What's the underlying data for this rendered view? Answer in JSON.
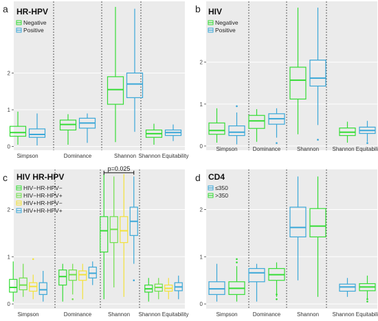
{
  "figure": {
    "panels": [
      {
        "letter": "a",
        "title": "HR-HPV"
      },
      {
        "letter": "b",
        "title": "HIV"
      },
      {
        "letter": "c",
        "title": "HIV HR-HPV"
      },
      {
        "letter": "d",
        "title": "CD4"
      }
    ]
  },
  "colors": {
    "green": "#35dc35",
    "blue": "#3aa7d8",
    "light_green": "#6ee04a",
    "yellow": "#f2e23a",
    "panel_bg": "#ebebeb",
    "divider": "#333333"
  },
  "chart_data": [
    {
      "panel": "a",
      "type": "box",
      "title": "HR-HPV",
      "categories": [
        "Simpson",
        "Dominance",
        "Shannon",
        "Shannon Equitability"
      ],
      "ylim": [
        -0.1,
        3.95
      ],
      "yticks": [
        0,
        1,
        2
      ],
      "legend": {
        "placement": "top-left",
        "entries": [
          "Negative",
          "Positive"
        ]
      },
      "series": [
        {
          "name": "Negative",
          "color": "green",
          "boxes": [
            {
              "min": 0.05,
              "q1": 0.28,
              "median": 0.38,
              "q3": 0.55,
              "max": 0.95,
              "outliers": []
            },
            {
              "min": 0.05,
              "q1": 0.45,
              "median": 0.6,
              "q3": 0.72,
              "max": 0.88,
              "outliers": []
            },
            {
              "min": 0.12,
              "q1": 1.15,
              "median": 1.55,
              "q3": 1.9,
              "max": 3.8,
              "outliers": []
            },
            {
              "min": 0.05,
              "q1": 0.25,
              "median": 0.35,
              "q3": 0.45,
              "max": 0.62,
              "outliers": []
            }
          ]
        },
        {
          "name": "Positive",
          "color": "blue",
          "boxes": [
            {
              "min": 0.03,
              "q1": 0.25,
              "median": 0.33,
              "q3": 0.48,
              "max": 0.9,
              "outliers": []
            },
            {
              "min": 0.1,
              "q1": 0.5,
              "median": 0.64,
              "q3": 0.77,
              "max": 0.9,
              "outliers": []
            },
            {
              "min": 0.4,
              "q1": 1.33,
              "median": 1.7,
              "q3": 2.0,
              "max": 3.75,
              "outliers": []
            },
            {
              "min": 0.15,
              "q1": 0.3,
              "median": 0.38,
              "q3": 0.45,
              "max": 0.6,
              "outliers": []
            }
          ]
        }
      ]
    },
    {
      "panel": "b",
      "type": "box",
      "title": "HIV",
      "categories": [
        "Simpson",
        "Dominance",
        "Shannon",
        "Shannon Equitability"
      ],
      "ylim": [
        -0.1,
        3.45
      ],
      "yticks": [
        0,
        1,
        2
      ],
      "legend": {
        "placement": "top-left",
        "entries": [
          "Negative",
          "Positive"
        ]
      },
      "series": [
        {
          "name": "Negative",
          "color": "green",
          "boxes": [
            {
              "min": 0.08,
              "q1": 0.28,
              "median": 0.37,
              "q3": 0.55,
              "max": 0.9,
              "outliers": []
            },
            {
              "min": 0.1,
              "q1": 0.42,
              "median": 0.6,
              "q3": 0.73,
              "max": 0.88,
              "outliers": []
            },
            {
              "min": 0.28,
              "q1": 1.12,
              "median": 1.57,
              "q3": 1.88,
              "max": 3.3,
              "outliers": []
            },
            {
              "min": 0.08,
              "q1": 0.25,
              "median": 0.33,
              "q3": 0.43,
              "max": 0.58,
              "outliers": []
            }
          ]
        },
        {
          "name": "Positive",
          "color": "blue",
          "boxes": [
            {
              "min": 0.04,
              "q1": 0.25,
              "median": 0.33,
              "q3": 0.48,
              "max": 0.8,
              "outliers": [
                0.95
              ]
            },
            {
              "min": 0.2,
              "q1": 0.52,
              "median": 0.65,
              "q3": 0.77,
              "max": 0.9,
              "outliers": [
                0.07
              ]
            },
            {
              "min": 0.5,
              "q1": 1.43,
              "median": 1.62,
              "q3": 2.05,
              "max": 3.3,
              "outliers": [
                0.15
              ]
            },
            {
              "min": 0.1,
              "q1": 0.3,
              "median": 0.37,
              "q3": 0.45,
              "max": 0.6,
              "outliers": [
                0.07
              ]
            }
          ]
        }
      ]
    },
    {
      "panel": "c",
      "type": "box",
      "title": "HIV HR-HPV",
      "categories": [
        "Simpson",
        "Dominance",
        "Shannon",
        "Shannon Equitability"
      ],
      "ylim": [
        -0.1,
        2.85
      ],
      "yticks": [
        0,
        1,
        2
      ],
      "legend": {
        "placement": "top-left",
        "entries": [
          "HIV−HR-HPV−",
          "HIV−HR-HPV+",
          "HIV+HR-HPV−",
          "HIV+HR-HPV+"
        ]
      },
      "annotation": {
        "text": "p=0.025",
        "category": "Shannon",
        "from_series": 0,
        "to_series": 3
      },
      "series": [
        {
          "name": "HIV−HR-HPV−",
          "color": "green",
          "boxes": [
            {
              "min": 0.05,
              "q1": 0.25,
              "median": 0.35,
              "q3": 0.52,
              "max": 0.9,
              "outliers": []
            },
            {
              "min": 0.05,
              "q1": 0.4,
              "median": 0.58,
              "q3": 0.72,
              "max": 0.85,
              "outliers": []
            },
            {
              "min": 0.1,
              "q1": 1.1,
              "median": 1.55,
              "q3": 1.85,
              "max": 2.75,
              "outliers": []
            },
            {
              "min": 0.05,
              "q1": 0.25,
              "median": 0.32,
              "q3": 0.4,
              "max": 0.55,
              "outliers": []
            }
          ]
        },
        {
          "name": "HIV−HR-HPV+",
          "color": "light_green",
          "boxes": [
            {
              "min": 0.15,
              "q1": 0.3,
              "median": 0.4,
              "q3": 0.55,
              "max": 0.85,
              "outliers": []
            },
            {
              "min": 0.2,
              "q1": 0.5,
              "median": 0.62,
              "q3": 0.72,
              "max": 0.85,
              "outliers": [
                0.1
              ]
            },
            {
              "min": 0.35,
              "q1": 1.3,
              "median": 1.58,
              "q3": 1.85,
              "max": 2.7,
              "outliers": []
            },
            {
              "min": 0.1,
              "q1": 0.27,
              "median": 0.35,
              "q3": 0.42,
              "max": 0.55,
              "outliers": []
            }
          ]
        },
        {
          "name": "HIV+HR-HPV−",
          "color": "yellow",
          "boxes": [
            {
              "min": 0.1,
              "q1": 0.27,
              "median": 0.37,
              "q3": 0.45,
              "max": 0.62,
              "outliers": [
                0.95
              ]
            },
            {
              "min": 0.1,
              "q1": 0.5,
              "median": 0.62,
              "q3": 0.7,
              "max": 0.85,
              "outliers": []
            },
            {
              "min": 0.15,
              "q1": 1.3,
              "median": 1.55,
              "q3": 1.85,
              "max": 2.75,
              "outliers": []
            },
            {
              "min": 0.1,
              "q1": 0.27,
              "median": 0.33,
              "q3": 0.4,
              "max": 0.55,
              "outliers": []
            }
          ]
        },
        {
          "name": "HIV+HR-HPV+",
          "color": "blue",
          "boxes": [
            {
              "min": 0.05,
              "q1": 0.2,
              "median": 0.3,
              "q3": 0.45,
              "max": 0.7,
              "outliers": []
            },
            {
              "min": 0.4,
              "q1": 0.55,
              "median": 0.65,
              "q3": 0.78,
              "max": 0.9,
              "outliers": []
            },
            {
              "min": 0.85,
              "q1": 1.45,
              "median": 1.75,
              "q3": 2.05,
              "max": 2.7,
              "outliers": [
                0.5
              ]
            },
            {
              "min": 0.1,
              "q1": 0.28,
              "median": 0.36,
              "q3": 0.45,
              "max": 0.6,
              "outliers": []
            }
          ]
        }
      ]
    },
    {
      "panel": "d",
      "type": "box",
      "title": "CD4",
      "categories": [
        "Simpson",
        "Dominance",
        "Shannon",
        "Shannon Equitability"
      ],
      "ylim": [
        -0.1,
        2.85
      ],
      "yticks": [
        0,
        1,
        2
      ],
      "legend": {
        "placement": "top-left",
        "entries": [
          "≤350",
          ">350"
        ]
      },
      "series": [
        {
          "name": "≤350",
          "color": "blue",
          "boxes": [
            {
              "min": 0.05,
              "q1": 0.2,
              "median": 0.32,
              "q3": 0.47,
              "max": 0.85,
              "outliers": []
            },
            {
              "min": 0.05,
              "q1": 0.47,
              "median": 0.66,
              "q3": 0.75,
              "max": 0.85,
              "outliers": []
            },
            {
              "min": 0.5,
              "q1": 1.42,
              "median": 1.62,
              "q3": 2.05,
              "max": 2.7,
              "outliers": []
            },
            {
              "min": 0.15,
              "q1": 0.27,
              "median": 0.36,
              "q3": 0.42,
              "max": 0.55,
              "outliers": []
            }
          ]
        },
        {
          "name": ">350",
          "color": "green",
          "boxes": [
            {
              "min": 0.05,
              "q1": 0.2,
              "median": 0.33,
              "q3": 0.47,
              "max": 0.8,
              "outliers": [
                0.95,
                0.88
              ]
            },
            {
              "min": 0.15,
              "q1": 0.5,
              "median": 0.62,
              "q3": 0.75,
              "max": 0.88,
              "outliers": [
                0.1,
                0.2
              ]
            },
            {
              "min": 0.15,
              "q1": 1.42,
              "median": 1.65,
              "q3": 2.02,
              "max": 2.7,
              "outliers": []
            },
            {
              "min": 0.1,
              "q1": 0.28,
              "median": 0.36,
              "q3": 0.43,
              "max": 0.6,
              "outliers": [
                0.05,
                0.1
              ]
            }
          ]
        }
      ]
    }
  ]
}
